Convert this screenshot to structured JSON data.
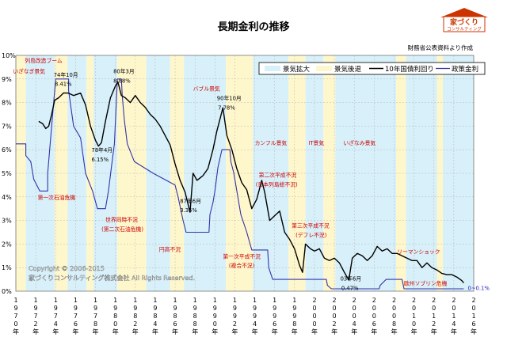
{
  "title": "長期金利の推移",
  "source": "財務省公表資料より作成",
  "logo": {
    "top": "家づくり",
    "bottom": "コンサルティング"
  },
  "copyright": {
    "line1": "Copyright © 2006-2015",
    "line2": "家づくりコンサルティング株式会社 All Rights Reserved."
  },
  "chart_data": {
    "type": "line",
    "ylim": [
      0,
      10
    ],
    "xlim": [
      1970,
      2016
    ],
    "y_ticks": [
      "0%",
      "1%",
      "2%",
      "3%",
      "4%",
      "5%",
      "6%",
      "7%",
      "8%",
      "9%",
      "10%"
    ],
    "x_ticks": [
      {
        "x": 1970,
        "label": "1970年"
      },
      {
        "x": 1972,
        "label": "1972年"
      },
      {
        "x": 1974,
        "label": "1974年"
      },
      {
        "x": 1976,
        "label": "1976年"
      },
      {
        "x": 1978,
        "label": "1978年"
      },
      {
        "x": 1980,
        "label": "1980年"
      },
      {
        "x": 1982,
        "label": "1982年"
      },
      {
        "x": 1984,
        "label": "1984年"
      },
      {
        "x": 1986,
        "label": "1986年"
      },
      {
        "x": 1988,
        "label": "1988年"
      },
      {
        "x": 1990,
        "label": "1990年"
      },
      {
        "x": 1992,
        "label": "1992年"
      },
      {
        "x": 1994,
        "label": "1994年"
      },
      {
        "x": 1996,
        "label": "1996年"
      },
      {
        "x": 1998,
        "label": "1998年"
      },
      {
        "x": 2000,
        "label": "2000年"
      },
      {
        "x": 2002,
        "label": "2002年"
      },
      {
        "x": 2004,
        "label": "2004年"
      },
      {
        "x": 2006,
        "label": "2006年"
      },
      {
        "x": 2008,
        "label": "2008年"
      },
      {
        "x": 2010,
        "label": "2010年"
      },
      {
        "x": 2012,
        "label": "2012年"
      },
      {
        "x": 2014,
        "label": "2014年"
      },
      {
        "x": 2016,
        "label": "2016年"
      }
    ],
    "legend": {
      "position": "top-right",
      "entries": [
        "景気拡大",
        "景気後退",
        "10年国債利回り",
        "政策金利"
      ]
    },
    "colors": {
      "expansion": "#d7f0fa",
      "recession": "#fff7cc",
      "bond": "#000000",
      "policy": "#3333aa",
      "annotation": "#cc0000"
    },
    "bands": [
      {
        "from": 1970.0,
        "to": 1971.0,
        "kind": "recession"
      },
      {
        "from": 1971.0,
        "to": 1973.9,
        "kind": "expansion"
      },
      {
        "from": 1973.9,
        "to": 1975.2,
        "kind": "recession"
      },
      {
        "from": 1975.2,
        "to": 1977.1,
        "kind": "expansion"
      },
      {
        "from": 1977.1,
        "to": 1977.8,
        "kind": "recession"
      },
      {
        "from": 1977.8,
        "to": 1980.2,
        "kind": "expansion"
      },
      {
        "from": 1980.2,
        "to": 1983.1,
        "kind": "recession"
      },
      {
        "from": 1983.1,
        "to": 1985.5,
        "kind": "expansion"
      },
      {
        "from": 1985.5,
        "to": 1986.9,
        "kind": "recession"
      },
      {
        "from": 1986.9,
        "to": 1991.1,
        "kind": "expansion"
      },
      {
        "from": 1991.1,
        "to": 1993.8,
        "kind": "recession"
      },
      {
        "from": 1993.8,
        "to": 1997.4,
        "kind": "expansion"
      },
      {
        "from": 1997.4,
        "to": 1999.1,
        "kind": "recession"
      },
      {
        "from": 1999.1,
        "to": 2000.9,
        "kind": "expansion"
      },
      {
        "from": 2000.9,
        "to": 2002.1,
        "kind": "recession"
      },
      {
        "from": 2002.1,
        "to": 2008.2,
        "kind": "expansion"
      },
      {
        "from": 2008.2,
        "to": 2009.2,
        "kind": "recession"
      },
      {
        "from": 2009.2,
        "to": 2012.3,
        "kind": "expansion"
      },
      {
        "from": 2012.3,
        "to": 2012.9,
        "kind": "recession"
      },
      {
        "from": 2012.9,
        "to": 2016.0,
        "kind": "expansion"
      }
    ],
    "series": [
      {
        "name": "10年国債利回り",
        "points": [
          [
            1972.3,
            7.2
          ],
          [
            1972.7,
            7.1
          ],
          [
            1973.0,
            6.9
          ],
          [
            1973.3,
            7.0
          ],
          [
            1973.6,
            7.5
          ],
          [
            1973.9,
            8.1
          ],
          [
            1974.3,
            8.2
          ],
          [
            1974.8,
            8.41
          ],
          [
            1975.3,
            8.4
          ],
          [
            1975.8,
            8.3
          ],
          [
            1976.5,
            8.4
          ],
          [
            1977.0,
            7.9
          ],
          [
            1977.5,
            7.0
          ],
          [
            1978.0,
            6.4
          ],
          [
            1978.3,
            6.15
          ],
          [
            1978.6,
            6.3
          ],
          [
            1979.0,
            7.2
          ],
          [
            1979.5,
            8.2
          ],
          [
            1980.0,
            8.7
          ],
          [
            1980.25,
            8.88
          ],
          [
            1980.6,
            8.3
          ],
          [
            1981.0,
            8.2
          ],
          [
            1981.5,
            8.0
          ],
          [
            1982.0,
            8.3
          ],
          [
            1982.5,
            8.0
          ],
          [
            1983.0,
            7.8
          ],
          [
            1983.5,
            7.5
          ],
          [
            1984.0,
            7.3
          ],
          [
            1984.5,
            7.0
          ],
          [
            1985.0,
            6.6
          ],
          [
            1985.5,
            6.2
          ],
          [
            1986.0,
            5.4
          ],
          [
            1986.5,
            4.7
          ],
          [
            1987.0,
            4.2
          ],
          [
            1987.5,
            3.35
          ],
          [
            1987.8,
            5.0
          ],
          [
            1988.2,
            4.7
          ],
          [
            1988.8,
            4.9
          ],
          [
            1989.3,
            5.2
          ],
          [
            1989.8,
            6.0
          ],
          [
            1990.2,
            6.8
          ],
          [
            1990.8,
            7.78
          ],
          [
            1991.2,
            6.6
          ],
          [
            1991.7,
            6.0
          ],
          [
            1992.2,
            5.2
          ],
          [
            1992.7,
            4.6
          ],
          [
            1993.2,
            4.3
          ],
          [
            1993.7,
            3.5
          ],
          [
            1994.2,
            3.9
          ],
          [
            1994.7,
            4.7
          ],
          [
            1995.0,
            4.2
          ],
          [
            1995.5,
            3.0
          ],
          [
            1996.0,
            3.2
          ],
          [
            1996.5,
            3.4
          ],
          [
            1997.0,
            2.5
          ],
          [
            1997.5,
            2.2
          ],
          [
            1998.0,
            1.8
          ],
          [
            1998.5,
            1.1
          ],
          [
            1998.8,
            0.8
          ],
          [
            1999.1,
            2.0
          ],
          [
            1999.6,
            1.8
          ],
          [
            2000.0,
            1.7
          ],
          [
            2000.5,
            1.8
          ],
          [
            2001.0,
            1.4
          ],
          [
            2001.5,
            1.3
          ],
          [
            2002.0,
            1.4
          ],
          [
            2002.5,
            1.2
          ],
          [
            2003.0,
            0.8
          ],
          [
            2003.45,
            0.47
          ],
          [
            2003.8,
            1.4
          ],
          [
            2004.3,
            1.6
          ],
          [
            2004.8,
            1.5
          ],
          [
            2005.3,
            1.3
          ],
          [
            2005.8,
            1.5
          ],
          [
            2006.3,
            1.9
          ],
          [
            2006.8,
            1.7
          ],
          [
            2007.3,
            1.8
          ],
          [
            2007.8,
            1.6
          ],
          [
            2008.3,
            1.6
          ],
          [
            2008.8,
            1.5
          ],
          [
            2009.3,
            1.4
          ],
          [
            2009.8,
            1.3
          ],
          [
            2010.3,
            1.3
          ],
          [
            2010.8,
            1.0
          ],
          [
            2011.3,
            1.2
          ],
          [
            2011.8,
            1.0
          ],
          [
            2012.3,
            0.9
          ],
          [
            2012.8,
            0.75
          ],
          [
            2013.3,
            0.7
          ],
          [
            2013.8,
            0.7
          ],
          [
            2014.3,
            0.6
          ],
          [
            2014.8,
            0.45
          ],
          [
            2015.0,
            0.35
          ]
        ]
      },
      {
        "name": "政策金利",
        "points": [
          [
            1970.0,
            6.25
          ],
          [
            1971.0,
            6.25
          ],
          [
            1971.0,
            5.75
          ],
          [
            1971.5,
            5.5
          ],
          [
            1971.8,
            4.75
          ],
          [
            1972.4,
            4.25
          ],
          [
            1973.2,
            4.25
          ],
          [
            1973.2,
            5.0
          ],
          [
            1973.6,
            7.0
          ],
          [
            1974.0,
            9.0
          ],
          [
            1975.3,
            9.0
          ],
          [
            1975.3,
            8.5
          ],
          [
            1975.8,
            7.0
          ],
          [
            1976.5,
            6.5
          ],
          [
            1977.0,
            5.0
          ],
          [
            1977.7,
            4.25
          ],
          [
            1978.2,
            3.5
          ],
          [
            1979.0,
            3.5
          ],
          [
            1979.3,
            4.25
          ],
          [
            1979.6,
            5.25
          ],
          [
            1979.9,
            6.25
          ],
          [
            1980.2,
            9.0
          ],
          [
            1980.6,
            9.0
          ],
          [
            1980.7,
            8.25
          ],
          [
            1980.9,
            7.25
          ],
          [
            1981.2,
            6.25
          ],
          [
            1981.9,
            5.5
          ],
          [
            1983.8,
            5.0
          ],
          [
            1986.0,
            4.5
          ],
          [
            1986.3,
            4.0
          ],
          [
            1986.8,
            3.0
          ],
          [
            1987.1,
            2.5
          ],
          [
            1989.4,
            2.5
          ],
          [
            1989.5,
            3.25
          ],
          [
            1989.8,
            3.75
          ],
          [
            1990.0,
            4.25
          ],
          [
            1990.3,
            5.25
          ],
          [
            1990.7,
            6.0
          ],
          [
            1991.5,
            6.0
          ],
          [
            1991.6,
            5.5
          ],
          [
            1991.9,
            5.0
          ],
          [
            1992.1,
            4.5
          ],
          [
            1992.6,
            3.25
          ],
          [
            1993.2,
            2.5
          ],
          [
            1993.7,
            1.75
          ],
          [
            1995.3,
            1.75
          ],
          [
            1995.4,
            1.0
          ],
          [
            1995.8,
            0.5
          ],
          [
            2001.2,
            0.5
          ],
          [
            2001.3,
            0.25
          ],
          [
            2001.7,
            0.1
          ],
          [
            2006.5,
            0.1
          ],
          [
            2006.6,
            0.25
          ],
          [
            2007.2,
            0.5
          ],
          [
            2008.8,
            0.5
          ],
          [
            2008.9,
            0.3
          ],
          [
            2009.0,
            0.1
          ],
          [
            2015.0,
            0.1
          ]
        ]
      }
    ],
    "annotations": [
      {
        "text": "列島改造ブーム",
        "x": 1970.9,
        "y": 9.7,
        "color": "red"
      },
      {
        "text": "いざなぎ景気",
        "x": 1969.7,
        "y": 9.25,
        "color": "red"
      },
      {
        "text": "74年10月",
        "x": 1973.8,
        "y": 9.1
      },
      {
        "text": "8.41%",
        "x": 1973.9,
        "y": 8.7
      },
      {
        "text": "80年3月",
        "x": 1979.8,
        "y": 9.25
      },
      {
        "text": "8.88%",
        "x": 1979.8,
        "y": 8.85
      },
      {
        "text": "バブル景気",
        "x": 1987.8,
        "y": 8.5,
        "color": "red"
      },
      {
        "text": "90年10月",
        "x": 1990.2,
        "y": 8.1
      },
      {
        "text": "7.78%",
        "x": 1990.3,
        "y": 7.7
      },
      {
        "text": "カンフル景気",
        "x": 1994.0,
        "y": 6.2,
        "color": "red"
      },
      {
        "text": "IT景気",
        "x": 1999.4,
        "y": 6.2,
        "color": "red"
      },
      {
        "text": "いざなみ景気",
        "x": 2002.9,
        "y": 6.2,
        "color": "red"
      },
      {
        "text": "78年4月",
        "x": 1977.6,
        "y": 5.9
      },
      {
        "text": "6.15%",
        "x": 1977.6,
        "y": 5.5
      },
      {
        "text": "第二次平成不況",
        "x": 1994.4,
        "y": 4.85,
        "color": "red"
      },
      {
        "text": "(日本列島総不況)",
        "x": 1994.1,
        "y": 4.45,
        "color": "red"
      },
      {
        "text": "第一次石油危機",
        "x": 1972.2,
        "y": 3.9,
        "color": "red"
      },
      {
        "text": "87年6月",
        "x": 1986.5,
        "y": 3.75
      },
      {
        "text": "3.35%",
        "x": 1986.5,
        "y": 3.35
      },
      {
        "text": "世界同時不況",
        "x": 1979.0,
        "y": 2.95,
        "color": "red"
      },
      {
        "text": "(第二次石油危機)",
        "x": 1978.6,
        "y": 2.55,
        "color": "red"
      },
      {
        "text": "第三次平成不況",
        "x": 1997.7,
        "y": 2.7,
        "color": "red"
      },
      {
        "text": "(デフレ不況)",
        "x": 1998.1,
        "y": 2.3,
        "color": "red"
      },
      {
        "text": "リーマンショック",
        "x": 2008.3,
        "y": 1.6,
        "color": "red"
      },
      {
        "text": "円高不況",
        "x": 1984.4,
        "y": 1.7,
        "color": "red"
      },
      {
        "text": "第一次平成不況",
        "x": 1990.8,
        "y": 1.4,
        "color": "red"
      },
      {
        "text": "(複合不況)",
        "x": 1991.4,
        "y": 1.0,
        "color": "red"
      },
      {
        "text": "03年6月",
        "x": 2002.6,
        "y": 0.45
      },
      {
        "text": "0.47%",
        "x": 2002.7,
        "y": 0.05
      },
      {
        "text": "欧州ソブリン危機",
        "x": 2009.0,
        "y": 0.25,
        "color": "red"
      },
      {
        "text": "0~0.1%",
        "x": 2015.4,
        "y": 0.05,
        "color": "blue"
      }
    ]
  }
}
